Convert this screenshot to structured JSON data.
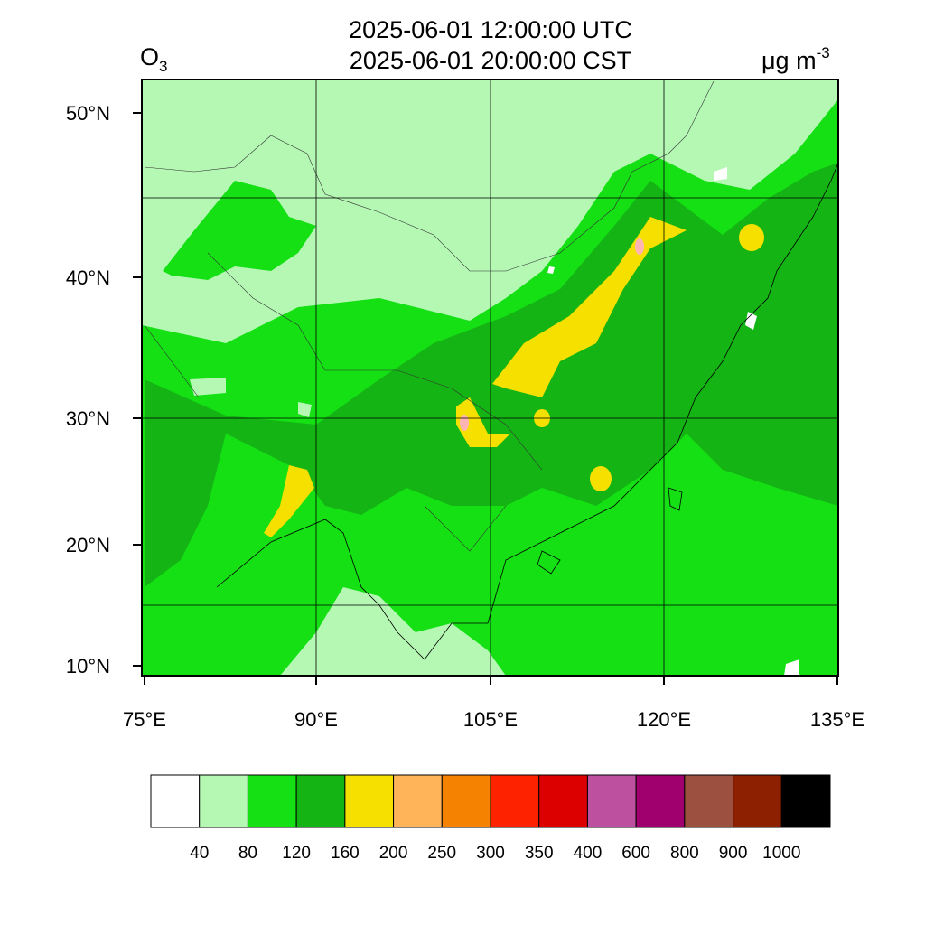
{
  "header": {
    "title_lines": [
      "2025-06-01 12:00:00 UTC",
      "2025-06-01 20:00:00 CST"
    ],
    "variable": {
      "base": "O",
      "subscript": "3"
    },
    "unit": {
      "base": "μg m",
      "superscript": "-3"
    }
  },
  "map": {
    "lat_labels": [
      "50°N",
      "40°N",
      "30°N",
      "20°N",
      "10°N"
    ],
    "lon_labels": [
      "75°E",
      "90°E",
      "105°E",
      "120°E",
      "135°E"
    ]
  },
  "colorbar": {
    "colors": [
      "#ffffff",
      "#b4f8b4",
      "#14e014",
      "#14b414",
      "#f5e000",
      "#ffb45a",
      "#f58200",
      "#ff2200",
      "#dc0000",
      "#be50a0",
      "#a0006e",
      "#9b5040",
      "#8c2000",
      "#000000"
    ],
    "labels": [
      "40",
      "80",
      "120",
      "160",
      "200",
      "250",
      "300",
      "350",
      "400",
      "600",
      "800",
      "900",
      "1000"
    ]
  }
}
